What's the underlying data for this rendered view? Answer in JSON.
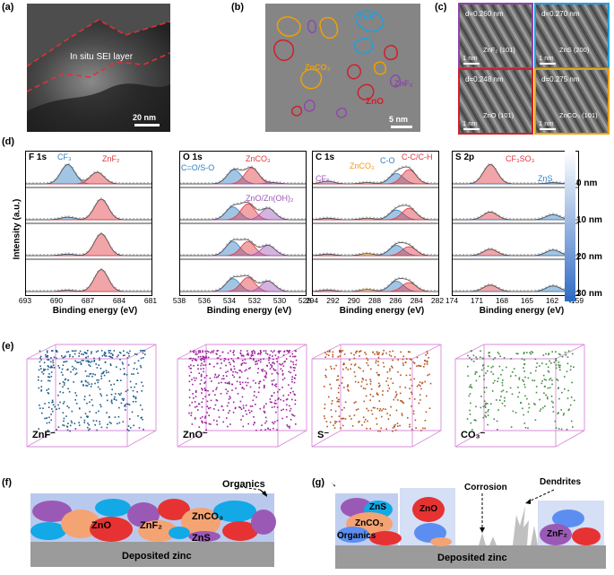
{
  "panels": {
    "a": {
      "label": "(a)",
      "annotation": "In situ SEI layer",
      "scalebar": "20 nm"
    },
    "b": {
      "label": "(b)",
      "scalebar": "5 nm",
      "regions": [
        "ZnS",
        "ZnCO₃",
        "ZnF₂",
        "ZnO"
      ]
    },
    "c": {
      "label": "(c)",
      "tiles": [
        {
          "d": "d=0.260 nm",
          "phase": "ZnF₂ (101)",
          "scalebar": "1 nm",
          "border": "#8e44ad"
        },
        {
          "d": "d=0.270 nm",
          "phase": "ZnS (200)",
          "scalebar": "1 nm",
          "border": "#1fa0e0"
        },
        {
          "d": "d=0.248 nm",
          "phase": "ZnO (101)",
          "scalebar": "1 nm",
          "border": "#d0202a"
        },
        {
          "d": "d=0.275 nm",
          "phase": "ZnCO₃ (101)",
          "scalebar": "1 nm",
          "border": "#f0a000"
        }
      ]
    },
    "d": {
      "label": "(d)",
      "ylabel": "Intensity (a.u.)",
      "xlabel": "Binding energy (eV)",
      "depth_ticks": [
        "0 nm",
        "10 nm",
        "20 nm",
        "30 nm"
      ]
    },
    "e": {
      "label": "(e)",
      "ions": [
        "ZnF⁻",
        "ZnO⁻",
        "S⁻",
        "CO₃⁻"
      ],
      "ion_colors": [
        "#1f5c8a",
        "#9b1f9b",
        "#b5521b",
        "#3f8a3f"
      ]
    },
    "f": {
      "label": "(f)",
      "organics": "Organics",
      "base": "Deposited zinc",
      "species": [
        "ZnO",
        "ZnF₂",
        "ZnCO₃",
        "ZnS"
      ]
    },
    "g": {
      "label": "(g)",
      "base": "Deposited zinc",
      "corrosion": "Corrosion",
      "dendrites": "Dendrites",
      "species": [
        "ZnS",
        "ZnCO₃",
        "Organics",
        "ZnO",
        "ZnF₂"
      ]
    }
  },
  "chart_data": [
    {
      "type": "line",
      "title": "F 1s",
      "xlim": [
        693,
        681
      ],
      "xticks": [
        "693",
        "690",
        "687",
        "684",
        "681"
      ],
      "peaks": [
        "CF₃",
        "ZnF₂"
      ],
      "peak_colors": [
        "#2f7fc1",
        "#e0383e"
      ],
      "series": [
        {
          "depth": "0 nm",
          "components": [
            {
              "peak": "CF₃",
              "center": 689.0,
              "height": 0.75
            },
            {
              "peak": "ZnF₂",
              "center": 686.2,
              "height": 0.45
            }
          ]
        },
        {
          "depth": "10 nm",
          "components": [
            {
              "peak": "CF₃",
              "center": 689.0,
              "height": 0.1
            },
            {
              "peak": "ZnF₂",
              "center": 685.8,
              "height": 0.8
            }
          ]
        },
        {
          "depth": "20 nm",
          "components": [
            {
              "peak": "CF₃",
              "center": 689.0,
              "height": 0.06
            },
            {
              "peak": "ZnF₂",
              "center": 685.8,
              "height": 0.85
            }
          ]
        },
        {
          "depth": "30 nm",
          "components": [
            {
              "peak": "CF₃",
              "center": 689.0,
              "height": 0.05
            },
            {
              "peak": "ZnF₂",
              "center": 685.8,
              "height": 0.85
            }
          ]
        }
      ]
    },
    {
      "type": "line",
      "title": "O 1s",
      "xlim": [
        538,
        528
      ],
      "xticks": [
        "538",
        "536",
        "534",
        "532",
        "530",
        "528"
      ],
      "peaks": [
        "C=O/S-O",
        "ZnCO₃",
        "ZnO/Zn(OH)₂"
      ],
      "peak_colors": [
        "#2f7fc1",
        "#e0383e",
        "#9b59b6"
      ],
      "series": [
        {
          "depth": "0 nm",
          "components": [
            {
              "peak": "C=O/S-O",
              "center": 533.7,
              "height": 0.55
            },
            {
              "peak": "ZnCO₃",
              "center": 532.3,
              "height": 0.62
            },
            {
              "peak": "ZnO/Zn(OH)₂",
              "center": 530.7,
              "height": 0.05
            }
          ]
        },
        {
          "depth": "10 nm",
          "components": [
            {
              "peak": "C=O/S-O",
              "center": 533.8,
              "height": 0.5
            },
            {
              "peak": "ZnCO₃",
              "center": 532.6,
              "height": 0.62
            },
            {
              "peak": "ZnO/Zn(OH)₂",
              "center": 531.0,
              "height": 0.45
            }
          ]
        },
        {
          "depth": "20 nm",
          "components": [
            {
              "peak": "C=O/S-O",
              "center": 533.8,
              "height": 0.55
            },
            {
              "peak": "ZnCO₃",
              "center": 532.6,
              "height": 0.55
            },
            {
              "peak": "ZnO/Zn(OH)₂",
              "center": 531.0,
              "height": 0.4
            }
          ]
        },
        {
          "depth": "30 nm",
          "components": [
            {
              "peak": "C=O/S-O",
              "center": 533.8,
              "height": 0.5
            },
            {
              "peak": "ZnCO₃",
              "center": 532.6,
              "height": 0.55
            },
            {
              "peak": "ZnO/Zn(OH)₂",
              "center": 531.0,
              "height": 0.4
            }
          ]
        }
      ]
    },
    {
      "type": "line",
      "title": "C 1s",
      "xlim": [
        294,
        282
      ],
      "xticks": [
        "294",
        "292",
        "290",
        "288",
        "286",
        "284",
        "282"
      ],
      "peaks": [
        "CF₃",
        "ZnCO₃",
        "C-O",
        "C-C/C-H"
      ],
      "peak_colors": [
        "#9b59b6",
        "#f39c12",
        "#2f7fc1",
        "#e0383e"
      ],
      "series": [
        {
          "depth": "0 nm",
          "components": [
            {
              "peak": "CF₃",
              "center": 292.6,
              "height": 0.1
            },
            {
              "peak": "ZnCO₃",
              "center": 288.8,
              "height": 0.05
            },
            {
              "peak": "C-O",
              "center": 286.0,
              "height": 0.4
            },
            {
              "peak": "C-C/C-H",
              "center": 284.8,
              "height": 0.55
            }
          ]
        },
        {
          "depth": "10 nm",
          "components": [
            {
              "peak": "CF₃",
              "center": 292.6,
              "height": 0.06
            },
            {
              "peak": "ZnCO₃",
              "center": 288.8,
              "height": 0.06
            },
            {
              "peak": "C-O",
              "center": 286.0,
              "height": 0.38
            },
            {
              "peak": "C-C/C-H",
              "center": 284.8,
              "height": 0.45
            }
          ]
        },
        {
          "depth": "20 nm",
          "components": [
            {
              "peak": "CF₃",
              "center": 292.6,
              "height": 0.06
            },
            {
              "peak": "ZnCO₃",
              "center": 288.8,
              "height": 0.08
            },
            {
              "peak": "C-O",
              "center": 286.0,
              "height": 0.4
            },
            {
              "peak": "C-C/C-H",
              "center": 284.8,
              "height": 0.35
            }
          ]
        },
        {
          "depth": "30 nm",
          "components": [
            {
              "peak": "CF₃",
              "center": 292.6,
              "height": 0.06
            },
            {
              "peak": "ZnCO₃",
              "center": 288.8,
              "height": 0.08
            },
            {
              "peak": "C-O",
              "center": 286.0,
              "height": 0.4
            },
            {
              "peak": "C-C/C-H",
              "center": 284.8,
              "height": 0.35
            }
          ]
        }
      ]
    },
    {
      "type": "line",
      "title": "S 2p",
      "xlim": [
        174,
        159
      ],
      "xticks": [
        "174",
        "171",
        "168",
        "165",
        "162",
        "159"
      ],
      "peaks": [
        "CF₃SO₃",
        "ZnS"
      ],
      "peak_colors": [
        "#e0383e",
        "#2f7fc1"
      ],
      "series": [
        {
          "depth": "0 nm",
          "components": [
            {
              "peak": "CF₃SO₃",
              "center": 169.5,
              "height": 0.75
            },
            {
              "peak": "ZnS",
              "center": 162.0,
              "height": 0.05
            }
          ]
        },
        {
          "depth": "10 nm",
          "components": [
            {
              "peak": "CF₃SO₃",
              "center": 169.5,
              "height": 0.3
            },
            {
              "peak": "ZnS",
              "center": 162.0,
              "height": 0.2
            }
          ]
        },
        {
          "depth": "20 nm",
          "components": [
            {
              "peak": "CF₃SO₃",
              "center": 169.5,
              "height": 0.25
            },
            {
              "peak": "ZnS",
              "center": 162.0,
              "height": 0.22
            }
          ]
        },
        {
          "depth": "30 nm",
          "components": [
            {
              "peak": "CF₃SO₃",
              "center": 169.5,
              "height": 0.25
            },
            {
              "peak": "ZnS",
              "center": 162.0,
              "height": 0.22
            }
          ]
        }
      ]
    }
  ]
}
